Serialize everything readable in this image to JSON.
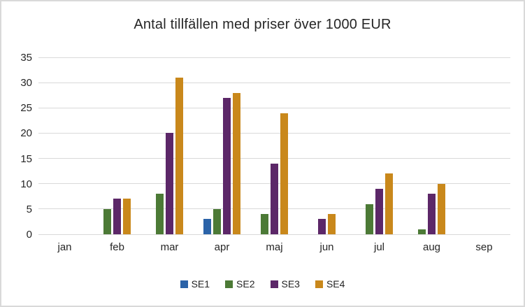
{
  "title": "Antal tillfällen med priser över 1000 EUR",
  "chart_data": {
    "type": "bar",
    "title": "Antal tillfällen med priser över 1000 EUR",
    "categories": [
      "jan",
      "feb",
      "mar",
      "apr",
      "maj",
      "jun",
      "jul",
      "aug",
      "sep"
    ],
    "series": [
      {
        "name": "SE1",
        "color": "#2b63a8",
        "values": [
          0,
          0,
          0,
          3,
          0,
          0,
          0,
          0,
          0
        ]
      },
      {
        "name": "SE2",
        "color": "#4c7a36",
        "values": [
          0,
          5,
          8,
          5,
          4,
          0,
          6,
          1,
          0
        ]
      },
      {
        "name": "SE3",
        "color": "#5c2768",
        "values": [
          0,
          7,
          20,
          27,
          14,
          3,
          9,
          8,
          0
        ]
      },
      {
        "name": "SE4",
        "color": "#c9881b",
        "values": [
          0,
          7,
          31,
          28,
          24,
          4,
          12,
          10,
          0
        ]
      }
    ],
    "xlabel": "",
    "ylabel": "",
    "ylim": [
      0,
      35
    ],
    "y_ticks": [
      35,
      30,
      25,
      20,
      15,
      10,
      5,
      0
    ],
    "grid": "horizontal",
    "gridline_color": "#d9d9d9",
    "legend_position": "bottom",
    "background_color": "#ffffff",
    "text_color": "#262626"
  }
}
